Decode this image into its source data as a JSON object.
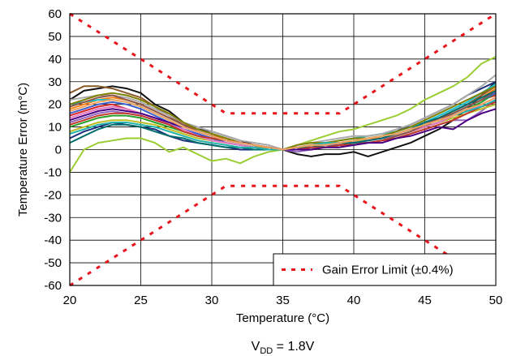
{
  "chart_data": {
    "type": "line",
    "title": "",
    "xlabel": "Temperature (°C)",
    "ylabel": "Temperature Error (m°C)",
    "xlim": [
      20,
      50
    ],
    "ylim": [
      -60,
      60
    ],
    "x_ticks": [
      20,
      25,
      30,
      35,
      40,
      45,
      50
    ],
    "y_ticks": [
      60,
      50,
      40,
      30,
      20,
      10,
      0,
      -10,
      -20,
      -30,
      -40,
      -50,
      -60
    ],
    "grid": true,
    "legend": {
      "placement": "bottom-right",
      "entries": [
        "Gain Error Limit (±0.4%)"
      ]
    },
    "caption": {
      "main": "V",
      "sub": "DD",
      "rest": " = 1.8V"
    },
    "limit_series": {
      "name": "Gain Error Limit (±0.4%)",
      "color": "#e8141c",
      "upper": {
        "x": [
          20,
          25,
          30,
          31,
          39,
          40,
          45,
          50
        ],
        "y": [
          60,
          40,
          20,
          16,
          16,
          20,
          40,
          60
        ]
      },
      "lower": {
        "x": [
          20,
          25,
          30,
          31,
          39,
          40,
          45,
          50
        ],
        "y": [
          -60,
          -40,
          -20,
          -16,
          -16,
          -20,
          -40,
          -60
        ]
      }
    },
    "series_x": [
      20,
      21,
      22,
      23,
      24,
      25,
      26,
      27,
      28,
      29,
      30,
      31,
      32,
      33,
      34,
      35,
      36,
      37,
      38,
      39,
      40,
      41,
      42,
      43,
      44,
      45,
      46,
      47,
      48,
      49,
      50
    ],
    "series": [
      {
        "color": "#9acd32",
        "values": [
          -10,
          0,
          3,
          4,
          5,
          5,
          3,
          -1,
          1,
          -2,
          -5,
          -4,
          -6,
          -3,
          -1,
          0,
          2,
          4,
          6,
          8,
          9,
          11,
          13,
          15,
          18,
          22,
          25,
          28,
          32,
          38,
          41
        ]
      },
      {
        "color": "#111111",
        "values": [
          22,
          26,
          27,
          28,
          27,
          25,
          20,
          17,
          12,
          9,
          8,
          6,
          4,
          2,
          1,
          0,
          -2,
          -3,
          -2,
          -2,
          -1,
          -3,
          -1,
          1,
          3,
          6,
          9,
          13,
          18,
          24,
          30
        ]
      },
      {
        "color": "#8b5a2b",
        "values": [
          25,
          28,
          28,
          27,
          25,
          23,
          19,
          15,
          11,
          9,
          7,
          5,
          3,
          2,
          1,
          0,
          1,
          0,
          1,
          1,
          3,
          4,
          5,
          6,
          8,
          10,
          14,
          17,
          20,
          24,
          28
        ]
      },
      {
        "color": "#1e2d7a",
        "values": [
          5,
          8,
          10,
          12,
          11,
          10,
          9,
          6,
          4,
          3,
          2,
          1,
          0,
          0,
          0,
          0,
          1,
          2,
          3,
          3,
          4,
          5,
          6,
          8,
          11,
          14,
          17,
          20,
          24,
          27,
          30
        ]
      },
      {
        "color": "#d62728",
        "values": [
          15,
          17,
          19,
          20,
          18,
          16,
          14,
          11,
          9,
          7,
          5,
          4,
          3,
          2,
          1,
          0,
          1,
          1,
          2,
          3,
          4,
          4,
          5,
          7,
          9,
          11,
          14,
          16,
          19,
          22,
          24
        ]
      },
      {
        "color": "#ff7f0e",
        "values": [
          18,
          20,
          22,
          23,
          22,
          20,
          17,
          14,
          11,
          8,
          6,
          5,
          3,
          2,
          1,
          0,
          1,
          2,
          2,
          3,
          3,
          4,
          6,
          7,
          9,
          12,
          14,
          17,
          20,
          23,
          27
        ]
      },
      {
        "color": "#2ca02c",
        "values": [
          10,
          12,
          14,
          15,
          15,
          14,
          12,
          10,
          8,
          6,
          4,
          3,
          2,
          1,
          1,
          0,
          0,
          1,
          2,
          2,
          3,
          3,
          4,
          6,
          8,
          10,
          12,
          15,
          18,
          21,
          25
        ]
      },
      {
        "color": "#9467bd",
        "values": [
          12,
          14,
          16,
          17,
          16,
          15,
          13,
          11,
          9,
          7,
          5,
          4,
          3,
          2,
          1,
          0,
          -1,
          0,
          1,
          2,
          2,
          3,
          4,
          5,
          7,
          9,
          11,
          13,
          13,
          17,
          22
        ]
      },
      {
        "color": "#17becf",
        "values": [
          20,
          21,
          22,
          22,
          21,
          19,
          16,
          13,
          10,
          8,
          6,
          4,
          3,
          2,
          1,
          0,
          1,
          2,
          3,
          4,
          5,
          6,
          7,
          8,
          10,
          12,
          15,
          18,
          21,
          25,
          29
        ]
      },
      {
        "color": "#aaaaaa",
        "values": [
          22,
          23,
          24,
          24,
          23,
          21,
          18,
          15,
          12,
          10,
          8,
          6,
          4,
          3,
          2,
          0,
          2,
          3,
          4,
          5,
          6,
          6,
          7,
          9,
          11,
          14,
          17,
          20,
          24,
          28,
          33
        ]
      },
      {
        "color": "#bcbd22",
        "values": [
          8,
          10,
          12,
          13,
          13,
          12,
          11,
          9,
          7,
          5,
          4,
          3,
          2,
          1,
          1,
          0,
          1,
          2,
          2,
          3,
          4,
          4,
          5,
          6,
          8,
          10,
          12,
          14,
          16,
          18,
          20
        ]
      },
      {
        "color": "#3a5fcd",
        "values": [
          16,
          18,
          20,
          21,
          20,
          18,
          15,
          12,
          9,
          7,
          5,
          3,
          2,
          1,
          0,
          0,
          0,
          1,
          2,
          2,
          3,
          4,
          5,
          7,
          9,
          11,
          13,
          16,
          19,
          22,
          25
        ]
      },
      {
        "color": "#e377c2",
        "values": [
          14,
          16,
          18,
          19,
          18,
          16,
          14,
          11,
          9,
          6,
          4,
          3,
          2,
          1,
          0,
          0,
          1,
          1,
          2,
          3,
          3,
          4,
          5,
          6,
          8,
          10,
          12,
          15,
          17,
          20,
          23
        ]
      },
      {
        "color": "#8c564b",
        "values": [
          19,
          21,
          23,
          24,
          22,
          20,
          17,
          14,
          11,
          8,
          6,
          4,
          3,
          2,
          1,
          0,
          0,
          1,
          1,
          2,
          3,
          3,
          4,
          6,
          8,
          11,
          13,
          16,
          19,
          22,
          26
        ]
      },
      {
        "color": "#006d6d",
        "values": [
          3,
          6,
          9,
          11,
          11,
          10,
          8,
          6,
          5,
          3,
          2,
          1,
          1,
          0,
          0,
          0,
          1,
          1,
          2,
          3,
          3,
          4,
          5,
          7,
          9,
          12,
          14,
          17,
          20,
          23,
          26
        ]
      },
      {
        "color": "#7f7f00",
        "values": [
          20,
          22,
          24,
          25,
          24,
          22,
          19,
          16,
          12,
          9,
          7,
          5,
          3,
          2,
          1,
          0,
          2,
          3,
          3,
          4,
          5,
          5,
          6,
          8,
          10,
          13,
          16,
          19,
          22,
          25,
          28
        ]
      },
      {
        "color": "#c0392b",
        "values": [
          11,
          13,
          15,
          16,
          16,
          15,
          13,
          11,
          8,
          6,
          5,
          4,
          3,
          2,
          1,
          0,
          0,
          1,
          1,
          2,
          2,
          3,
          4,
          5,
          7,
          9,
          11,
          13,
          16,
          19,
          21
        ]
      },
      {
        "color": "#4b0082",
        "values": [
          13,
          15,
          17,
          18,
          17,
          16,
          14,
          12,
          10,
          8,
          6,
          4,
          3,
          2,
          1,
          0,
          0,
          0,
          1,
          1,
          2,
          3,
          3,
          5,
          6,
          8,
          10,
          9,
          13,
          16,
          18
        ]
      },
      {
        "color": "#20b2aa",
        "values": [
          7,
          9,
          11,
          12,
          12,
          11,
          10,
          8,
          6,
          4,
          3,
          2,
          1,
          1,
          0,
          0,
          1,
          2,
          3,
          3,
          4,
          5,
          6,
          7,
          9,
          11,
          13,
          15,
          17,
          19,
          22
        ]
      },
      {
        "color": "#f4a460",
        "values": [
          17,
          19,
          21,
          22,
          21,
          19,
          16,
          13,
          10,
          8,
          6,
          4,
          3,
          2,
          1,
          0,
          1,
          2,
          2,
          3,
          4,
          5,
          6,
          7,
          9,
          11,
          13,
          15,
          18,
          20,
          23
        ]
      }
    ]
  }
}
